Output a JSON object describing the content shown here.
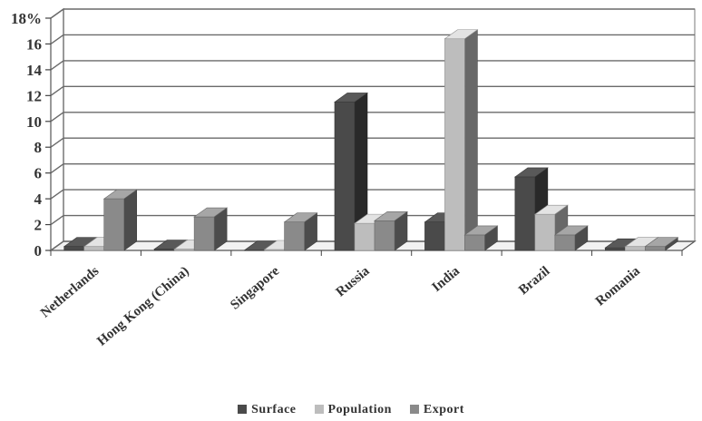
{
  "chart_data": {
    "type": "bar",
    "subtype": "3d-clustered",
    "categories": [
      "Netherlands",
      "Hong Kong (China)",
      "Singapore",
      "Russia",
      "India",
      "Brazil",
      "Romania"
    ],
    "series": [
      {
        "name": "Surface",
        "color": "#4a4a4a",
        "values": [
          0.3,
          0.1,
          0.02,
          11.5,
          2.2,
          5.7,
          0.2
        ]
      },
      {
        "name": "Population",
        "color": "#bdbdbd",
        "values": [
          0.3,
          0.1,
          0.07,
          2.1,
          16.4,
          2.8,
          0.3
        ]
      },
      {
        "name": "Export",
        "color": "#8a8a8a",
        "values": [
          4.0,
          2.6,
          2.2,
          2.3,
          1.2,
          1.2,
          0.3
        ]
      }
    ],
    "yticks": [
      "0",
      "2",
      "4",
      "6",
      "8",
      "10",
      "12",
      "14",
      "16",
      "18%"
    ],
    "ylim": [
      0,
      18
    ],
    "grid": true,
    "legend_position": "bottom"
  }
}
